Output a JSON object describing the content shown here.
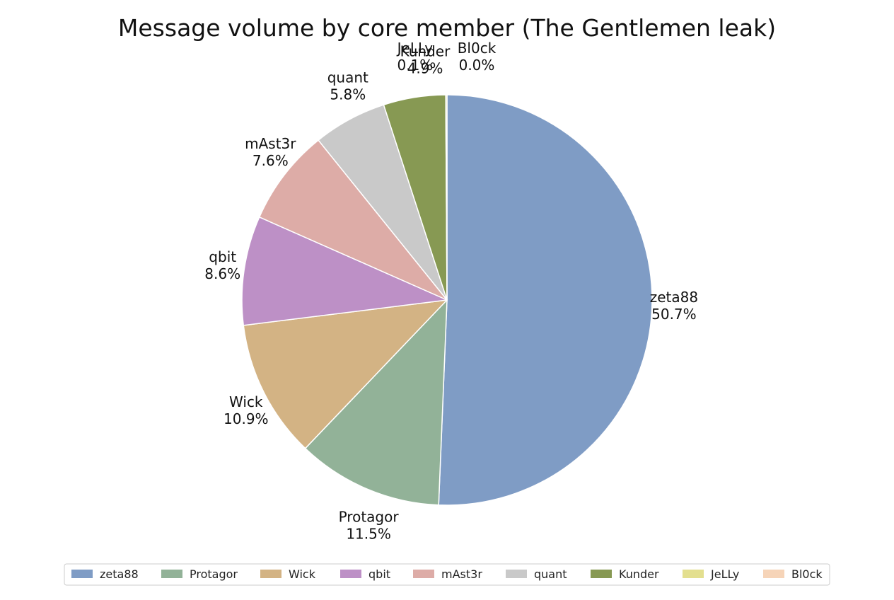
{
  "chart_data": {
    "type": "pie",
    "title": "Message volume by core member (The Gentlemen leak)",
    "categories": [
      "zeta88",
      "Protagor",
      "Wick",
      "qbit",
      "mAst3r",
      "quant",
      "Kunder",
      "JeLLy",
      "Bl0ck"
    ],
    "values": [
      50.7,
      11.5,
      10.9,
      8.6,
      7.6,
      5.8,
      4.9,
      0.1,
      0.0
    ],
    "value_labels": [
      "50.7%",
      "11.5%",
      "10.9%",
      "8.6%",
      "7.6%",
      "5.8%",
      "4.9%",
      "0.1%",
      "0.0%"
    ],
    "colors": [
      "#7f9cc5",
      "#92b298",
      "#d3b384",
      "#bd90c6",
      "#ddaca7",
      "#c9c9c9",
      "#879953",
      "#e3df8f",
      "#f6d4b8"
    ],
    "start_angle": "top (12 o'clock)",
    "direction": "clockwise",
    "legend": {
      "position": "bottom",
      "entries": [
        "zeta88",
        "Protagor",
        "Wick",
        "qbit",
        "mAst3r",
        "quant",
        "Kunder",
        "JeLLy",
        "Bl0ck"
      ]
    }
  }
}
